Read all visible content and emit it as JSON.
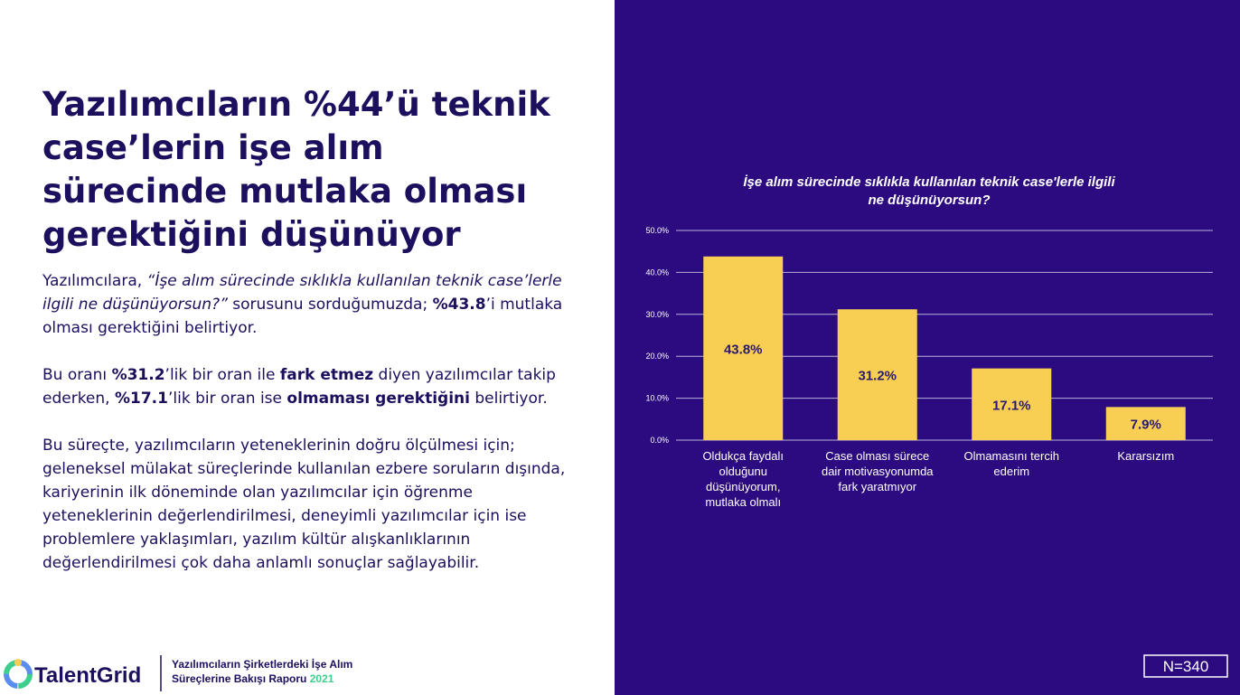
{
  "heading": "Yazılımcıların %44’ü teknik case’lerin işe alım sürecinde mutlaka olması gerektiğini düşünüyor",
  "paragraphs": [
    [
      {
        "text": "Yazılımcılara, "
      },
      {
        "text": "“İşe alım sürecinde sıklıkla kullanılan teknik case’lerle ilgili ne düşünüyorsun?”",
        "style": "italic"
      },
      {
        "text": " sorusunu sorduğumuzda; "
      },
      {
        "text": "%43.8",
        "style": "bold"
      },
      {
        "text": "’i mutlaka olması gerektiğini belirtiyor."
      }
    ],
    [
      {
        "text": "Bu oranı "
      },
      {
        "text": "%31.2",
        "style": "bold"
      },
      {
        "text": "’lik bir oran ile "
      },
      {
        "text": "fark etmez",
        "style": "bold"
      },
      {
        "text": " diyen yazılımcılar takip ederken, "
      },
      {
        "text": "%17.1",
        "style": "bold"
      },
      {
        "text": "’lik bir oran ise "
      },
      {
        "text": "olmaması gerektiğini",
        "style": "bold"
      },
      {
        "text": " belirtiyor."
      }
    ],
    [
      {
        "text": "Bu süreçte, yazılımcıların yeteneklerinin doğru ölçülmesi için; geleneksel mülakat süreçlerinde kullanılan ezbere soruların dışında, kariyerinin ilk döneminde olan yazılımcılar için öğrenme yeteneklerinin değerlendirilmesi, deneyimli yazılımcılar için ise problemlere yaklaşımları, yazılım kültür alışkanlıklarının değerlendirilmesi çok daha anlamlı sonuçlar sağlayabilir."
      }
    ]
  ],
  "footer": {
    "brand": "TalentGrid",
    "report": "Yazılımcıların Şirketlerdeki İşe Alım Süreçlerine Bakışı Raporu",
    "year": "2021"
  },
  "sample": "N=340",
  "chart_data": {
    "type": "bar",
    "title": "İşe alım sürecinde sıklıkla kullanılan teknik case'lerle ilgili ne düşünüyorsun?",
    "categories": [
      "Oldukça faydalı olduğunu düşünüyorum, mutlaka olmalı",
      "Case olması sürece dair motivasyonumda fark yaratmıyor",
      "Olmamasını tercih ederim",
      "Kararsızım"
    ],
    "values": [
      43.8,
      31.2,
      17.1,
      7.9
    ],
    "value_labels": [
      "43.8%",
      "31.2%",
      "17.1%",
      "7.9%"
    ],
    "color": "#f9cf53",
    "ylim": [
      0,
      50
    ],
    "yticks": [
      {
        "value": 0,
        "label": "0.0%"
      },
      {
        "value": 10,
        "label": "10.0%"
      },
      {
        "value": 20,
        "label": "20.0%"
      },
      {
        "value": 30,
        "label": "30.0%"
      },
      {
        "value": 40,
        "label": "40.0%"
      },
      {
        "value": 50,
        "label": "50.0%"
      }
    ],
    "grid": true
  }
}
